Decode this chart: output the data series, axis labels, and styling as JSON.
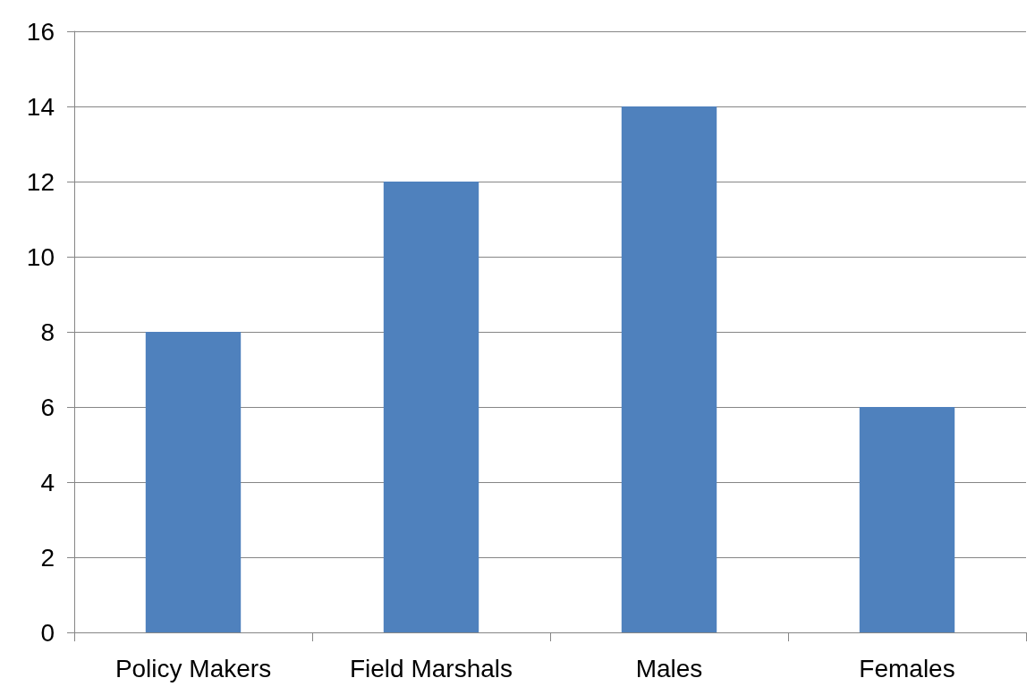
{
  "chart_data": {
    "type": "bar",
    "categories": [
      "Policy Makers",
      "Field Marshals",
      "Males",
      "Females"
    ],
    "values": [
      8,
      12,
      14,
      6
    ],
    "color": "#4f81bd",
    "ylim": [
      0,
      16
    ],
    "yticks": [
      0,
      2,
      4,
      6,
      8,
      10,
      12,
      14,
      16
    ],
    "grid": "y"
  }
}
